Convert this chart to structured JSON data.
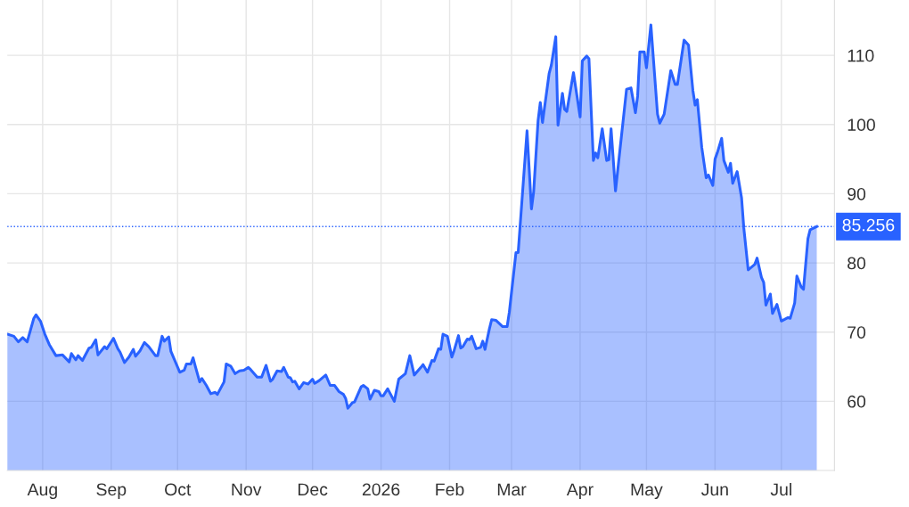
{
  "chart_data": {
    "type": "area",
    "color": "#2962ff",
    "grid": true,
    "legend": false,
    "marker": "none",
    "line_style": "solid",
    "x": [
      "2025-07-16",
      "2025-07-19",
      "2025-07-21",
      "2025-07-23",
      "2025-07-25",
      "2025-07-28",
      "2025-07-29",
      "2025-07-31",
      "2025-08-02",
      "2025-08-04",
      "2025-08-07",
      "2025-08-10",
      "2025-08-13",
      "2025-08-14",
      "2025-08-16",
      "2025-08-17",
      "2025-08-19",
      "2025-08-22",
      "2025-08-23",
      "2025-08-25",
      "2025-08-26",
      "2025-08-29",
      "2025-08-30",
      "2025-09-02",
      "2025-09-04",
      "2025-09-05",
      "2025-09-07",
      "2025-09-09",
      "2025-09-11",
      "2025-09-12",
      "2025-09-14",
      "2025-09-16",
      "2025-09-18",
      "2025-09-21",
      "2025-09-22",
      "2025-09-24",
      "2025-09-25",
      "2025-09-27",
      "2025-09-28",
      "2025-10-02",
      "2025-10-04",
      "2025-10-05",
      "2025-10-07",
      "2025-10-08",
      "2025-10-09",
      "2025-10-11",
      "2025-10-12",
      "2025-10-14",
      "2025-10-16",
      "2025-10-18",
      "2025-10-19",
      "2025-10-22",
      "2025-10-23",
      "2025-10-25",
      "2025-10-27",
      "2025-10-29",
      "2025-10-31",
      "2025-11-02",
      "2025-11-03",
      "2025-11-06",
      "2025-11-08",
      "2025-11-10",
      "2025-11-12",
      "2025-11-13",
      "2025-11-15",
      "2025-11-17",
      "2025-11-18",
      "2025-11-20",
      "2025-11-21",
      "2025-11-22",
      "2025-11-23",
      "2025-11-25",
      "2025-11-27",
      "2025-11-29",
      "2025-12-01",
      "2025-12-02",
      "2025-12-04",
      "2025-12-07",
      "2025-12-09",
      "2025-12-11",
      "2025-12-13",
      "2025-12-15",
      "2025-12-16",
      "2025-12-17",
      "2025-12-19",
      "2025-12-20",
      "2025-12-23",
      "2025-12-24",
      "2025-12-26",
      "2025-12-27",
      "2025-12-29",
      "2025-12-31",
      "2026-01-01",
      "2026-01-02",
      "2026-01-04",
      "2026-01-07",
      "2026-01-09",
      "2026-01-12",
      "2026-01-14",
      "2026-01-16",
      "2026-01-19",
      "2026-01-20",
      "2026-01-22",
      "2026-01-24",
      "2026-01-25",
      "2026-01-27",
      "2026-01-28",
      "2026-01-29",
      "2026-01-31",
      "2026-02-02",
      "2026-02-03",
      "2026-02-05",
      "2026-02-06",
      "2026-02-07",
      "2026-02-09",
      "2026-02-10",
      "2026-02-11",
      "2026-02-13",
      "2026-02-15",
      "2026-02-16",
      "2026-02-17",
      "2026-02-19",
      "2026-02-20",
      "2026-02-22",
      "2026-02-25",
      "2026-02-27",
      "2026-02-28",
      "2026-03-03",
      "2026-03-04",
      "2026-03-08",
      "2026-03-10",
      "2026-03-11",
      "2026-03-13",
      "2026-03-14",
      "2026-03-15",
      "2026-03-18",
      "2026-03-19",
      "2026-03-21",
      "2026-03-22",
      "2026-03-24",
      "2026-03-25",
      "2026-03-26",
      "2026-03-29",
      "2026-04-01",
      "2026-04-02",
      "2026-04-04",
      "2026-04-05",
      "2026-04-07",
      "2026-04-08",
      "2026-04-09",
      "2026-04-11",
      "2026-04-13",
      "2026-04-14",
      "2026-04-15",
      "2026-04-17",
      "2026-04-19",
      "2026-04-22",
      "2026-04-24",
      "2026-04-26",
      "2026-04-27",
      "2026-04-28",
      "2026-04-30",
      "2026-05-01",
      "2026-05-03",
      "2026-05-06",
      "2026-05-07",
      "2026-05-09",
      "2026-05-12",
      "2026-05-14",
      "2026-05-15",
      "2026-05-18",
      "2026-05-20",
      "2026-05-22",
      "2026-05-23",
      "2026-05-24",
      "2026-05-26",
      "2026-05-28",
      "2026-05-29",
      "2026-05-31",
      "2026-06-01",
      "2026-06-02",
      "2026-06-04",
      "2026-06-05",
      "2026-06-07",
      "2026-06-08",
      "2026-06-09",
      "2026-06-11",
      "2026-06-13",
      "2026-06-14",
      "2026-06-16",
      "2026-06-19",
      "2026-06-20",
      "2026-06-22",
      "2026-06-23",
      "2026-06-24",
      "2026-06-26",
      "2026-06-27",
      "2026-06-29",
      "2026-07-01",
      "2026-07-04",
      "2026-07-05",
      "2026-07-07",
      "2026-07-08",
      "2026-07-10",
      "2026-07-11",
      "2026-07-13",
      "2026-07-14",
      "2026-07-17"
    ],
    "values": [
      69.7,
      69.4,
      68.6,
      69.2,
      68.6,
      72.0,
      72.5,
      71.6,
      69.7,
      68.2,
      66.6,
      66.7,
      65.7,
      66.9,
      66.0,
      66.6,
      65.9,
      67.7,
      67.8,
      68.9,
      66.7,
      67.9,
      67.6,
      69.1,
      67.6,
      67.1,
      65.6,
      66.4,
      67.5,
      66.5,
      67.3,
      68.5,
      67.9,
      66.6,
      66.6,
      69.4,
      68.7,
      69.3,
      67.2,
      64.2,
      64.5,
      65.4,
      65.4,
      66.3,
      65.1,
      62.8,
      63.3,
      62.3,
      61.1,
      61.3,
      61.0,
      62.8,
      65.4,
      65.1,
      64.0,
      64.4,
      64.5,
      64.9,
      64.6,
      63.5,
      63.5,
      65.2,
      62.9,
      63.2,
      64.4,
      64.3,
      64.9,
      63.5,
      63.4,
      62.8,
      62.9,
      61.8,
      62.7,
      62.5,
      63.2,
      62.6,
      63.0,
      63.8,
      62.3,
      62.3,
      61.4,
      61.0,
      60.4,
      59.0,
      59.8,
      59.9,
      62.1,
      62.3,
      61.8,
      60.3,
      61.6,
      61.4,
      60.8,
      60.8,
      61.8,
      60.0,
      63.2,
      64.0,
      66.6,
      63.8,
      64.9,
      65.3,
      64.2,
      65.9,
      65.8,
      67.6,
      67.5,
      69.7,
      69.4,
      66.4,
      67.3,
      69.5,
      67.7,
      67.9,
      69.0,
      68.9,
      69.4,
      67.6,
      67.8,
      68.7,
      67.5,
      70.5,
      71.8,
      71.7,
      70.8,
      70.8,
      72.9,
      81.5,
      81.5,
      99.1,
      87.8,
      90.3,
      100.6,
      103.2,
      100.3,
      107.4,
      108.6,
      112.7,
      99.9,
      104.5,
      102.2,
      101.9,
      107.5,
      101.1,
      109.2,
      109.9,
      109.5,
      94.8,
      95.9,
      95.2,
      99.4,
      94.8,
      94.9,
      99.4,
      90.4,
      96.3,
      105.1,
      105.3,
      101.7,
      104.1,
      110.5,
      110.5,
      108.2,
      114.4,
      101.5,
      100.2,
      101.5,
      107.8,
      105.8,
      105.8,
      112.2,
      111.5,
      104.9,
      102.8,
      103.6,
      96.7,
      92.3,
      92.7,
      91.2,
      95.0,
      95.9,
      98.0,
      94.8,
      93.1,
      94.4,
      91.5,
      93.2,
      89.4,
      85.1,
      79.0,
      79.8,
      80.7,
      77.9,
      77.2,
      73.9,
      75.5,
      72.7,
      74.0,
      71.6,
      72.1,
      72.0,
      74.2,
      78.1,
      76.5,
      76.2,
      83.5,
      84.8,
      85.256
    ],
    "xlim": [
      "2025-07-16",
      "2026-07-25"
    ],
    "xticks": [
      {
        "value": "2025-08-01",
        "label": "Aug"
      },
      {
        "value": "2025-09-01",
        "label": "Sep"
      },
      {
        "value": "2025-10-01",
        "label": "Oct"
      },
      {
        "value": "2025-11-01",
        "label": "Nov"
      },
      {
        "value": "2025-12-01",
        "label": "Dec"
      },
      {
        "value": "2026-01-01",
        "label": "2026"
      },
      {
        "value": "2026-02-01",
        "label": "Feb"
      },
      {
        "value": "2026-03-01",
        "label": "Mar"
      },
      {
        "value": "2026-04-01",
        "label": "Apr"
      },
      {
        "value": "2026-05-01",
        "label": "May"
      },
      {
        "value": "2026-06-01",
        "label": "Jun"
      },
      {
        "value": "2026-07-01",
        "label": "Jul"
      }
    ],
    "ylim": [
      50,
      118
    ],
    "yticks": [
      60,
      70,
      80,
      90,
      100,
      110
    ],
    "ref_lines": [
      {
        "axis": "y",
        "value": 85.256,
        "label": "85.256",
        "color": "#2962ff",
        "line_style": "dotted"
      }
    ]
  }
}
